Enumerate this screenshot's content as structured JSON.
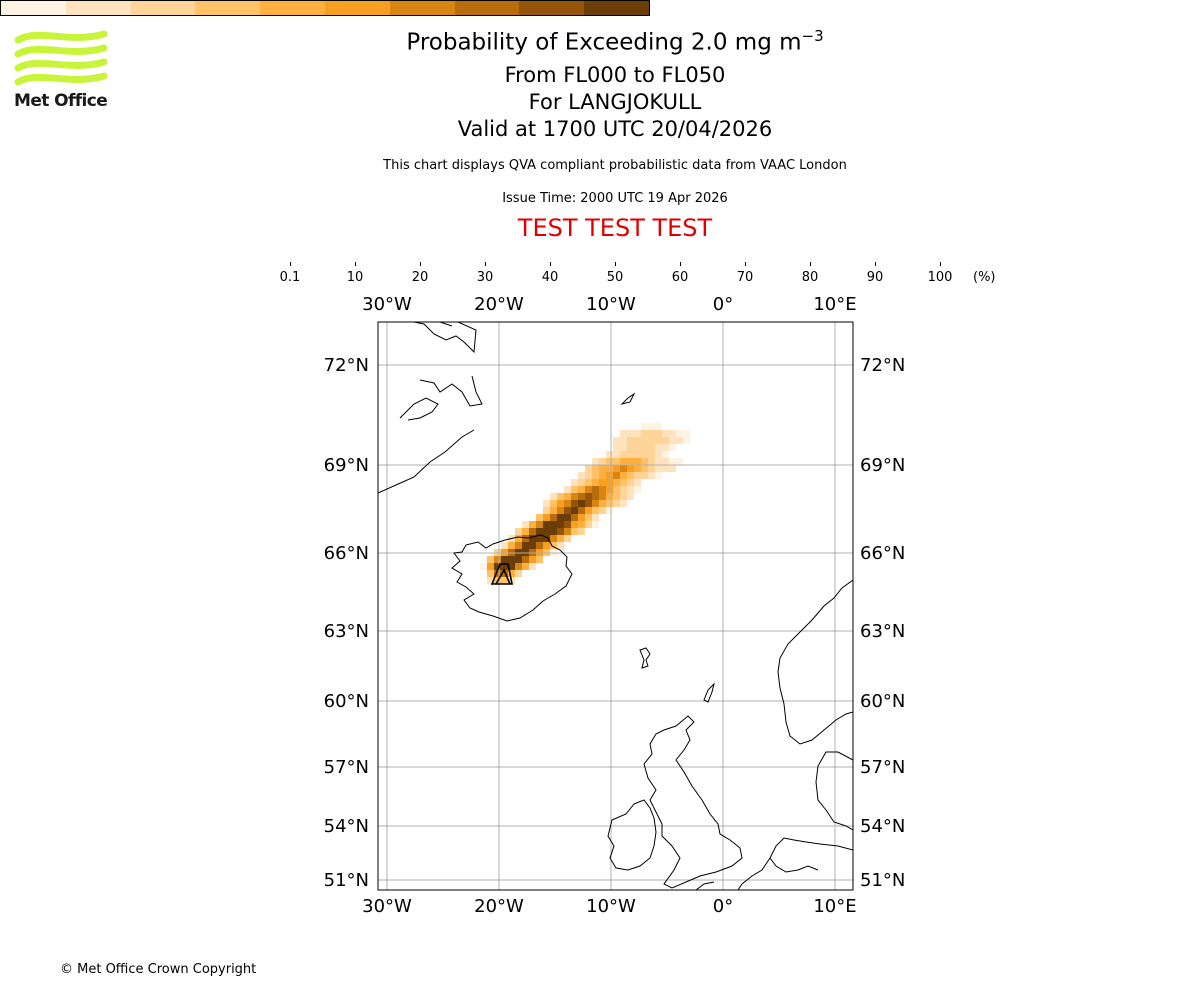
{
  "branding": {
    "logo_text": "Met Office",
    "logo_color": "#c8f53c",
    "copyright": "© Met Office Crown Copyright"
  },
  "header": {
    "title_line1": "Probability of Exceeding 2.0 mg m",
    "title_superscript": "−3",
    "title_line2": "From FL000 to FL050",
    "title_line3": "For LANGJOKULL",
    "title_line4": "Valid at 1700 UTC 20/04/2026",
    "subtitle": "This chart displays QVA compliant probabilistic data from VAAC London",
    "issue_time": "Issue Time: 2000 UTC 19 Apr 2026",
    "test_banner": "TEST TEST TEST",
    "test_color": "#e00000"
  },
  "colorbar": {
    "unit": "(%)",
    "ticks": [
      "0.1",
      "10",
      "20",
      "30",
      "40",
      "50",
      "60",
      "70",
      "80",
      "90",
      "100"
    ],
    "colors": [
      "#fff4e4",
      "#ffe3bf",
      "#ffd498",
      "#ffc266",
      "#fdb03f",
      "#f89e20",
      "#d88514",
      "#b86c0c",
      "#945409",
      "#6b3d07"
    ]
  },
  "map": {
    "lon_labels": [
      "30°W",
      "20°W",
      "10°W",
      "0°",
      "10°E"
    ],
    "lat_labels": [
      "72°N",
      "69°N",
      "66°N",
      "63°N",
      "60°N",
      "57°N",
      "54°N",
      "51°N"
    ],
    "volcano_symbol": "volcano-triangle",
    "volcano_name": "LANGJOKULL"
  }
}
